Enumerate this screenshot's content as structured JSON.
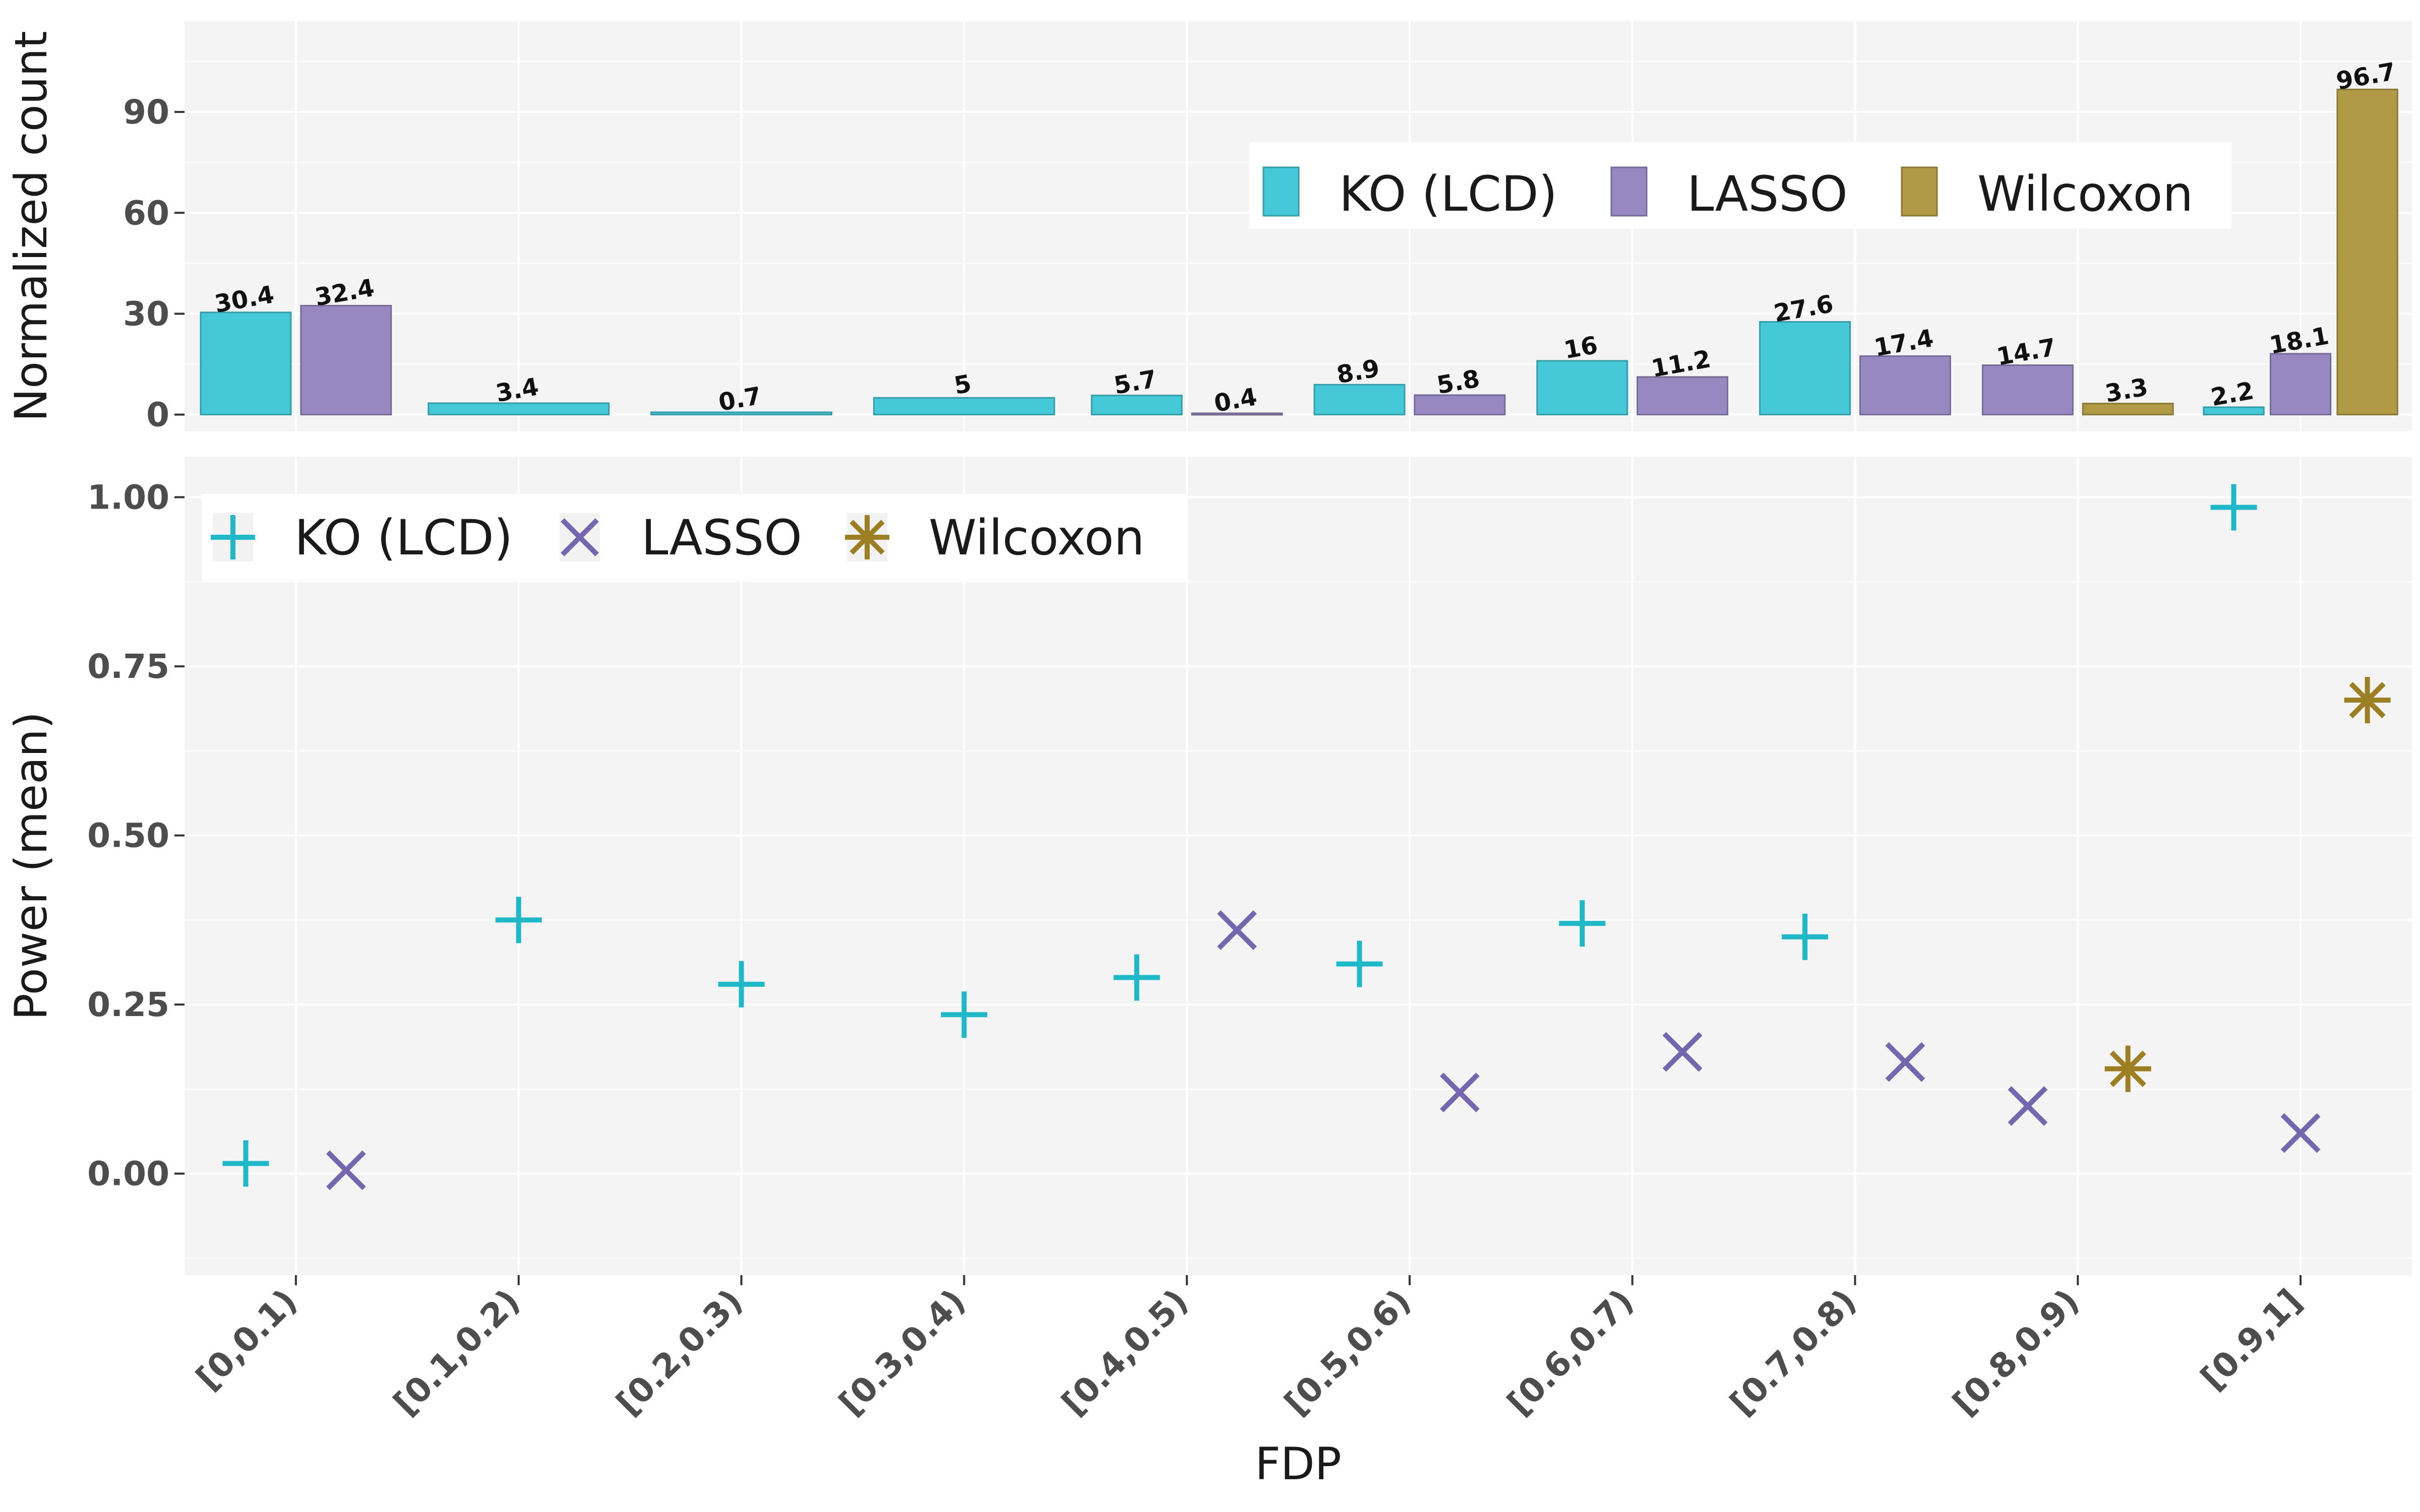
{
  "chart_data": [
    {
      "type": "bar",
      "ylabel": "Normalized count",
      "xlabel": "",
      "ylim": [
        -5,
        117
      ],
      "yticks": [
        0,
        30,
        60,
        90
      ],
      "grid": true,
      "legend_position": "top-right",
      "categories": [
        "[0,0.1)",
        "[0.1,0.2)",
        "[0.2,0.3)",
        "[0.3,0.4)",
        "[0.4,0.5)",
        "[0.5,0.6)",
        "[0.6,0.7)",
        "[0.7,0.8)",
        "[0.8,0.9)",
        "[0.9,1]"
      ],
      "series": [
        {
          "name": "KO (LCD)",
          "color": "#45c9d8",
          "values": [
            30.4,
            3.4,
            0.7,
            5,
            5.7,
            8.9,
            16,
            27.6,
            null,
            2.2
          ]
        },
        {
          "name": "LASSO",
          "color": "#9788c2",
          "values": [
            32.4,
            null,
            null,
            null,
            0.4,
            5.8,
            11.2,
            17.4,
            14.7,
            18.1
          ]
        },
        {
          "name": "Wilcoxon",
          "color": "#b09a45",
          "values": [
            null,
            null,
            null,
            null,
            null,
            null,
            null,
            null,
            3.3,
            96.7
          ]
        }
      ],
      "data_labels": [
        [
          "30.4",
          "3.4",
          "0.7",
          "5",
          "5.7",
          "8.9",
          "16",
          "27.6",
          null,
          "2.2"
        ],
        [
          "32.4",
          null,
          null,
          null,
          "0.4",
          "5.8",
          "11.2",
          "17.4",
          "14.7",
          "18.1"
        ],
        [
          null,
          null,
          null,
          null,
          null,
          null,
          null,
          null,
          "3.3",
          "96.7"
        ]
      ]
    },
    {
      "type": "scatter",
      "ylabel": "Power (mean)",
      "xlabel": "FDP",
      "ylim": [
        -0.15,
        1.06
      ],
      "yticks": [
        "0.00",
        "0.25",
        "0.50",
        "0.75",
        "1.00"
      ],
      "grid": true,
      "legend_position": "top-left",
      "categories": [
        "[0,0.1)",
        "[0.1,0.2)",
        "[0.2,0.3)",
        "[0.3,0.4)",
        "[0.4,0.5)",
        "[0.5,0.6)",
        "[0.6,0.7)",
        "[0.7,0.8)",
        "[0.8,0.9)",
        "[0.9,1]"
      ],
      "series": [
        {
          "name": "KO (LCD)",
          "color": "#1fb8c9",
          "marker": "plus",
          "values": [
            0.015,
            0.375,
            0.28,
            0.235,
            0.29,
            0.31,
            0.37,
            0.35,
            null,
            0.985
          ]
        },
        {
          "name": "LASSO",
          "color": "#7467ad",
          "marker": "cross",
          "values": [
            0.005,
            null,
            null,
            null,
            0.36,
            0.12,
            0.18,
            0.165,
            0.1,
            0.06
          ]
        },
        {
          "name": "Wilcoxon",
          "color": "#9c7f22",
          "marker": "star",
          "values": [
            null,
            null,
            null,
            null,
            null,
            null,
            null,
            null,
            0.155,
            0.7
          ]
        }
      ]
    }
  ]
}
